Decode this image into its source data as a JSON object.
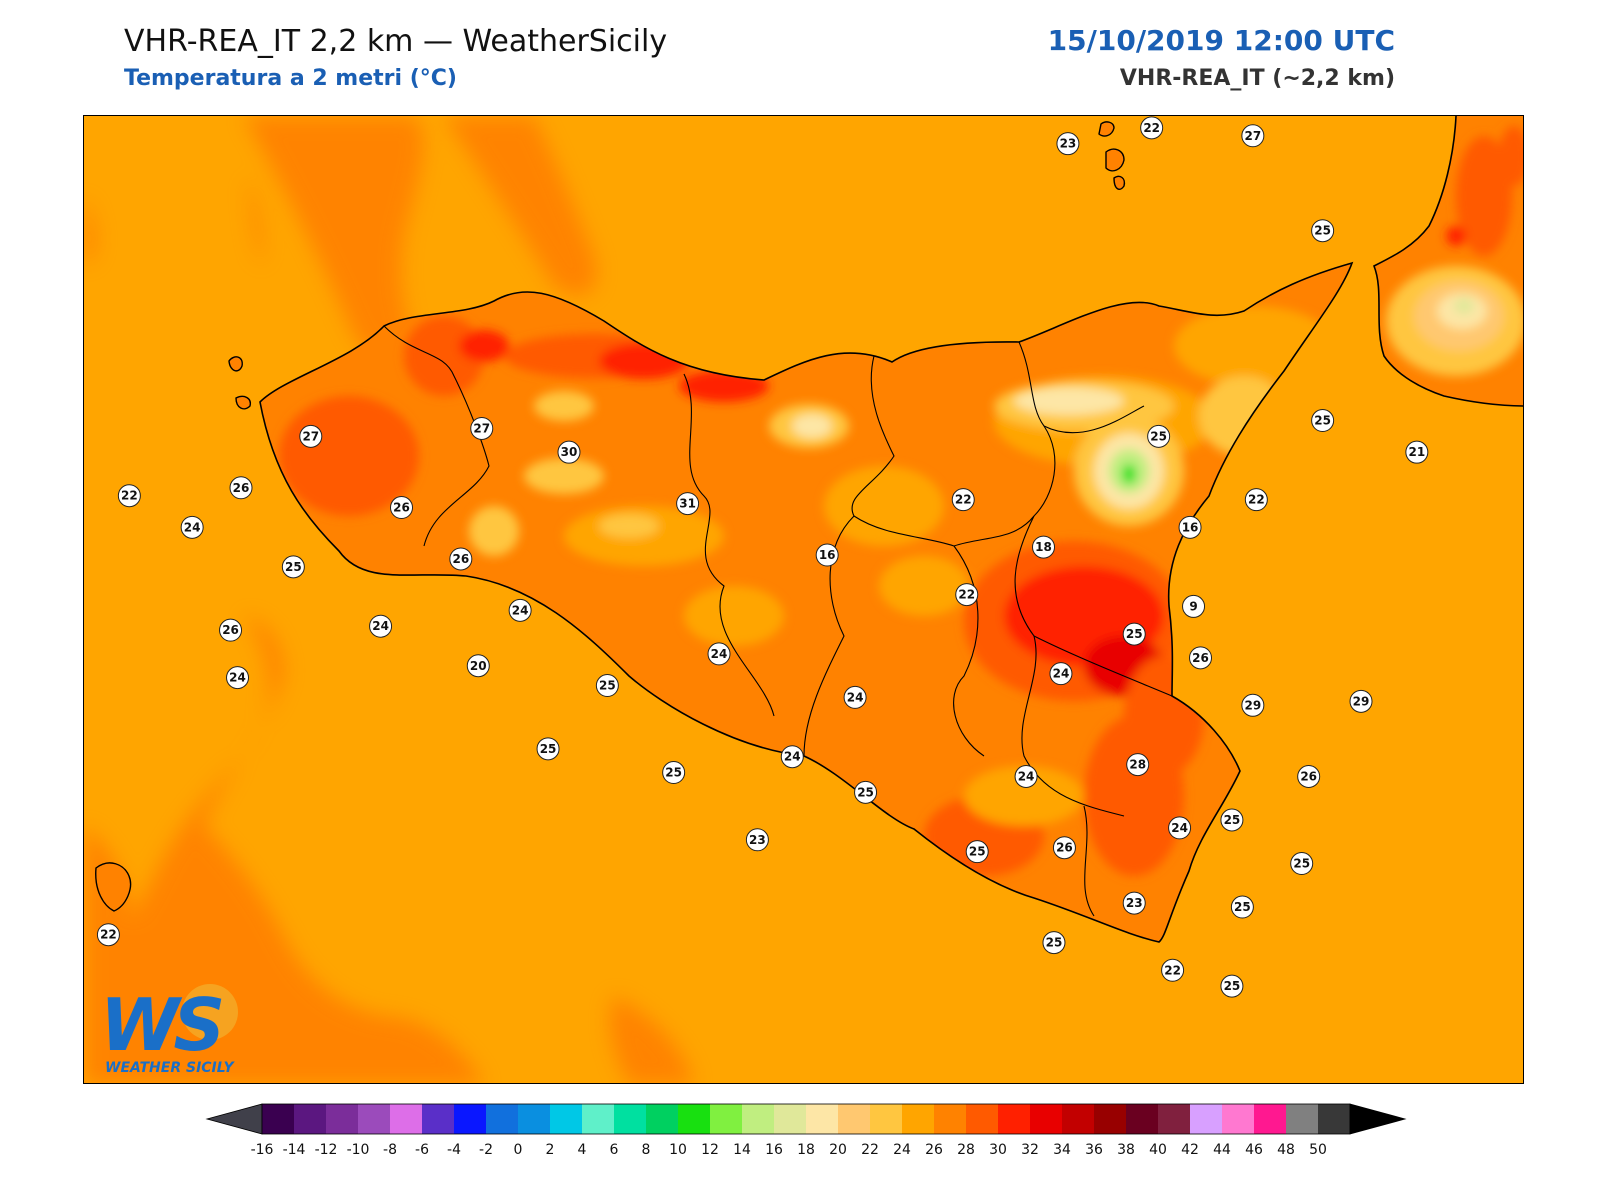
{
  "header": {
    "title": "VHR-REA_IT 2,2 km — WeatherSicily",
    "subtitle": "Temperatura a 2 metri (°C)",
    "datetime": "15/10/2019 12:00 UTC",
    "model": "VHR-REA_IT (~2,2 km)"
  },
  "logo": {
    "initials": "WS",
    "name": "WEATHER SICILY"
  },
  "colorbar": {
    "ticks": [
      "-16",
      "-14",
      "-12",
      "-10",
      "-8",
      "-6",
      "-4",
      "-2",
      "0",
      "2",
      "4",
      "6",
      "8",
      "10",
      "12",
      "14",
      "16",
      "18",
      "20",
      "22",
      "24",
      "26",
      "28",
      "30",
      "32",
      "34",
      "36",
      "38",
      "40",
      "42",
      "44",
      "46",
      "48",
      "50"
    ],
    "colors": [
      "#3a0050",
      "#5b1780",
      "#7b2d9a",
      "#9b4bbb",
      "#dd6ee8",
      "#5a2fc8",
      "#0a17ff",
      "#1170dd",
      "#0a8fe0",
      "#00c8e6",
      "#5ff0c9",
      "#00e0a0",
      "#00d060",
      "#18e010",
      "#80f040",
      "#c0ee80",
      "#e0e89a",
      "#fde6a6",
      "#ffc870",
      "#ffc640",
      "#ffa500",
      "#ff8200",
      "#ff5a00",
      "#ff2000",
      "#e80000",
      "#c20000",
      "#980000",
      "#6a0020",
      "#80203e",
      "#d8a0ff",
      "#ff78d0",
      "#ff1890",
      "#808080",
      "#383838"
    ],
    "under_color": "#40404a",
    "over_color": "#000000"
  },
  "stations": [
    {
      "label": "23",
      "lon": 14.72,
      "lat": 38.81
    },
    {
      "label": "22",
      "lon": 14.96,
      "lat": 38.85
    },
    {
      "label": "27",
      "lon": 15.25,
      "lat": 38.83
    },
    {
      "label": "25",
      "lon": 15.45,
      "lat": 38.59
    },
    {
      "label": "25",
      "lon": 14.98,
      "lat": 38.07
    },
    {
      "label": "25",
      "lon": 15.45,
      "lat": 38.11
    },
    {
      "label": "21",
      "lon": 15.72,
      "lat": 38.03
    },
    {
      "label": "22",
      "lon": 14.42,
      "lat": 37.91
    },
    {
      "label": "22",
      "lon": 15.26,
      "lat": 37.91
    },
    {
      "label": "16",
      "lon": 15.07,
      "lat": 37.84
    },
    {
      "label": "18",
      "lon": 14.65,
      "lat": 37.79
    },
    {
      "label": "9",
      "lon": 15.08,
      "lat": 37.64
    },
    {
      "label": "22",
      "lon": 14.43,
      "lat": 37.67
    },
    {
      "label": "16",
      "lon": 14.03,
      "lat": 37.77
    },
    {
      "label": "31",
      "lon": 13.63,
      "lat": 37.9
    },
    {
      "label": "30",
      "lon": 13.29,
      "lat": 38.03
    },
    {
      "label": "27",
      "lon": 13.04,
      "lat": 38.09
    },
    {
      "label": "27",
      "lon": 12.55,
      "lat": 38.07
    },
    {
      "label": "26",
      "lon": 12.35,
      "lat": 37.94
    },
    {
      "label": "26",
      "lon": 12.81,
      "lat": 37.89
    },
    {
      "label": "22",
      "lon": 12.03,
      "lat": 37.92
    },
    {
      "label": "24",
      "lon": 12.21,
      "lat": 37.84
    },
    {
      "label": "25",
      "lon": 12.5,
      "lat": 37.74
    },
    {
      "label": "26",
      "lon": 12.98,
      "lat": 37.76
    },
    {
      "label": "26",
      "lon": 12.32,
      "lat": 37.58
    },
    {
      "label": "24",
      "lon": 12.75,
      "lat": 37.59
    },
    {
      "label": "24",
      "lon": 13.15,
      "lat": 37.63
    },
    {
      "label": "24",
      "lon": 12.34,
      "lat": 37.46
    },
    {
      "label": "20",
      "lon": 13.03,
      "lat": 37.49
    },
    {
      "label": "24",
      "lon": 13.72,
      "lat": 37.52
    },
    {
      "label": "25",
      "lon": 13.4,
      "lat": 37.44
    },
    {
      "label": "25",
      "lon": 14.91,
      "lat": 37.57
    },
    {
      "label": "26",
      "lon": 15.1,
      "lat": 37.51
    },
    {
      "label": "24",
      "lon": 14.7,
      "lat": 37.47
    },
    {
      "label": "24",
      "lon": 14.11,
      "lat": 37.41
    },
    {
      "label": "29",
      "lon": 15.25,
      "lat": 37.39
    },
    {
      "label": "29",
      "lon": 15.56,
      "lat": 37.4
    },
    {
      "label": "25",
      "lon": 13.23,
      "lat": 37.28
    },
    {
      "label": "25",
      "lon": 13.59,
      "lat": 37.22
    },
    {
      "label": "24",
      "lon": 13.93,
      "lat": 37.26
    },
    {
      "label": "28",
      "lon": 14.92,
      "lat": 37.24
    },
    {
      "label": "24",
      "lon": 14.6,
      "lat": 37.21
    },
    {
      "label": "25",
      "lon": 14.14,
      "lat": 37.17
    },
    {
      "label": "26",
      "lon": 15.41,
      "lat": 37.21
    },
    {
      "label": "24",
      "lon": 15.04,
      "lat": 37.08
    },
    {
      "label": "25",
      "lon": 15.19,
      "lat": 37.1
    },
    {
      "label": "23",
      "lon": 13.83,
      "lat": 37.05
    },
    {
      "label": "25",
      "lon": 14.46,
      "lat": 37.02
    },
    {
      "label": "26",
      "lon": 14.71,
      "lat": 37.03
    },
    {
      "label": "25",
      "lon": 15.39,
      "lat": 36.99
    },
    {
      "label": "23",
      "lon": 14.91,
      "lat": 36.89
    },
    {
      "label": "25",
      "lon": 15.22,
      "lat": 36.88
    },
    {
      "label": "25",
      "lon": 14.68,
      "lat": 36.79
    },
    {
      "label": "22",
      "lon": 15.02,
      "lat": 36.72
    },
    {
      "label": "25",
      "lon": 15.19,
      "lat": 36.68
    },
    {
      "label": "22",
      "lon": 11.97,
      "lat": 36.81
    }
  ]
}
